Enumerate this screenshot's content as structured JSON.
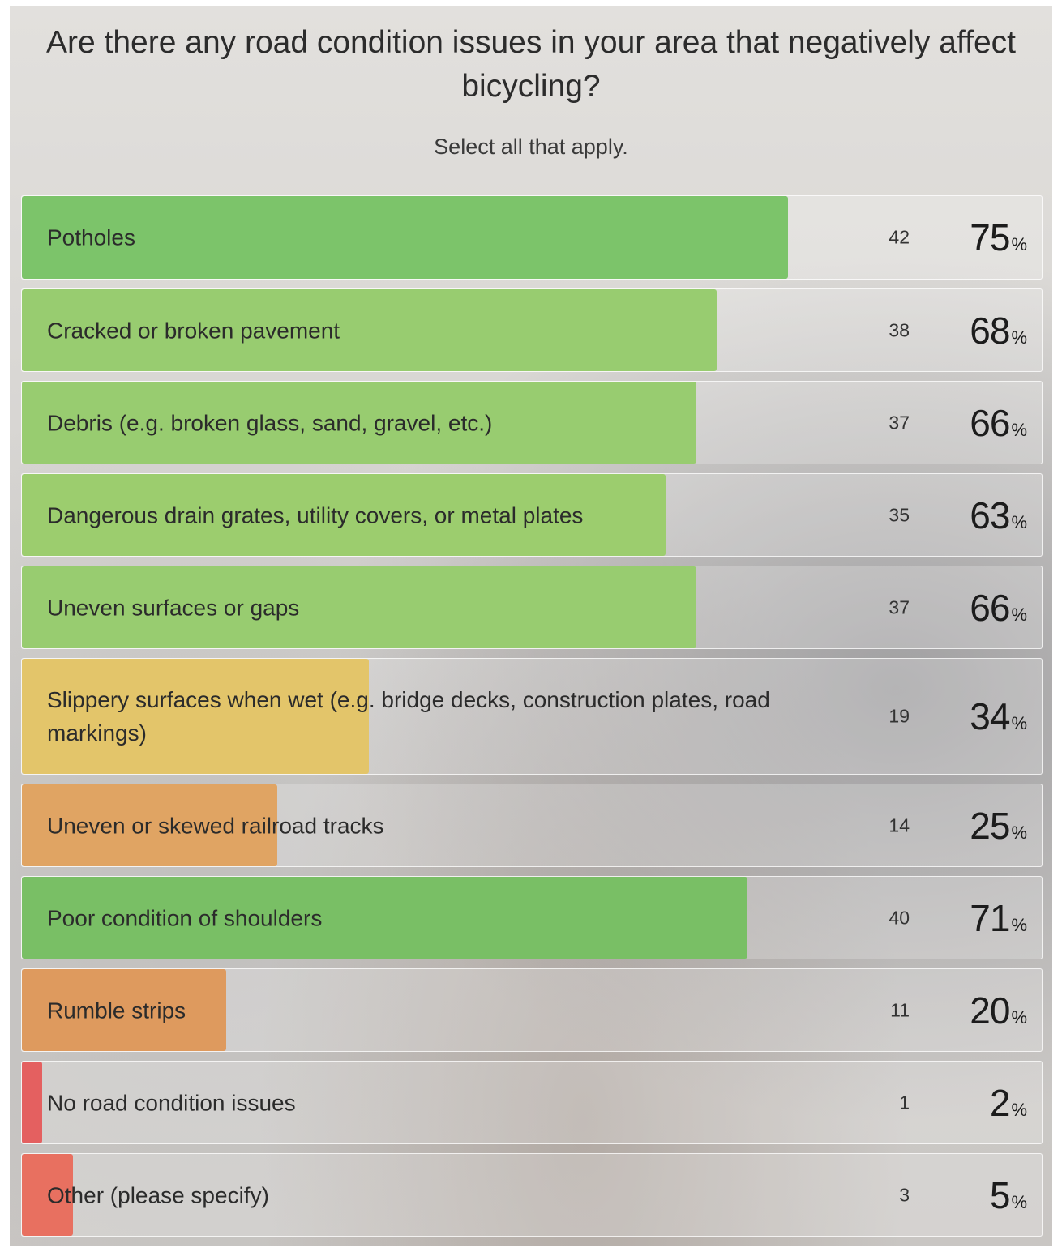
{
  "title": "Are there any road condition issues in your area that negatively affect bicycling?",
  "subtitle": "Select all that apply.",
  "percent_symbol": "%",
  "chart_data": {
    "type": "bar",
    "orientation": "horizontal",
    "title": "Are there any road condition issues in your area that negatively affect bicycling?",
    "subtitle": "Select all that apply.",
    "categories": [
      "Potholes",
      "Cracked or broken pavement",
      "Debris (e.g. broken glass, sand, gravel, etc.)",
      "Dangerous drain grates, utility covers, or metal plates",
      "Uneven surfaces or gaps",
      "Slippery surfaces when wet (e.g. bridge decks, construction plates, road markings)",
      "Uneven or skewed railroad tracks",
      "Poor condition of shoulders",
      "Rumble strips",
      "No road condition issues",
      "Other (please specify)"
    ],
    "counts": [
      "42",
      "38",
      "37",
      "35",
      "37",
      "19",
      "14",
      "40",
      "11",
      "1",
      "3"
    ],
    "percents": [
      "75",
      "68",
      "66",
      "63",
      "66",
      "34",
      "25",
      "71",
      "20",
      "2",
      "5"
    ],
    "values": [
      75,
      68,
      66,
      63,
      66,
      34,
      25,
      71,
      20,
      2,
      5
    ],
    "bar_colors": [
      "#7cc46a",
      "#98cc70",
      "#98cc70",
      "#9ccd6e",
      "#98cc70",
      "#e3c56a",
      "#e0a463",
      "#79bf65",
      "#de9a5e",
      "#e46060",
      "#e87060"
    ],
    "xlim": [
      0,
      100
    ],
    "grid": false
  }
}
